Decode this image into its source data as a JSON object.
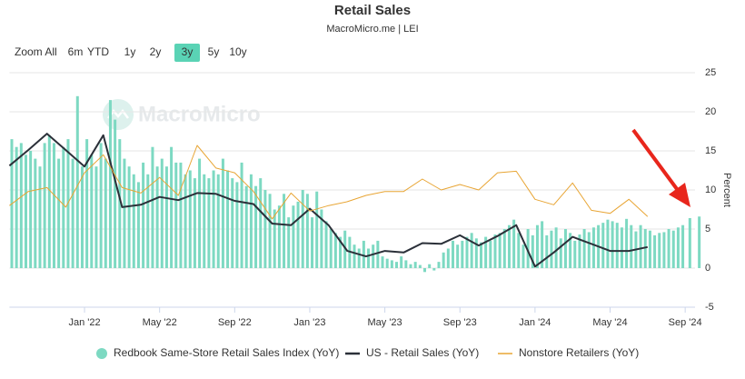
{
  "chart_data": {
    "type": "combo",
    "title": "Retail Sales",
    "subtitle": "MacroMicro.me | LEI",
    "watermark": "MacroMicro",
    "y_axis_title": "Percent",
    "range_selector": {
      "label": "Zoom",
      "buttons": [
        "All",
        "6m",
        "YTD",
        "1y",
        "2y",
        "3y",
        "5y",
        "10y"
      ],
      "selected": 5
    },
    "xlim": [
      "2021-09",
      "2024-10"
    ],
    "xticks": [
      {
        "value": "2022-01",
        "label": "Jan '22"
      },
      {
        "value": "2022-05",
        "label": "May '22"
      },
      {
        "value": "2022-09",
        "label": "Sep '22"
      },
      {
        "value": "2023-01",
        "label": "Jan '23"
      },
      {
        "value": "2023-05",
        "label": "May '23"
      },
      {
        "value": "2023-09",
        "label": "Sep '23"
      },
      {
        "value": "2024-01",
        "label": "Jan '24"
      },
      {
        "value": "2024-05",
        "label": "May '24"
      },
      {
        "value": "2024-09",
        "label": "Sep '24"
      }
    ],
    "ylim": [
      -5,
      25
    ],
    "yticks": [
      -5,
      0,
      5,
      10,
      15,
      20,
      25
    ],
    "grid": true,
    "series": [
      {
        "name": "Redbook Same-Store Retail Sales Index (YoY)",
        "type": "bar",
        "color": "#7dd9c2",
        "x": [
          "2021-09",
          "2021-09",
          "2021-09",
          "2021-09",
          "2021-10",
          "2021-10",
          "2021-10",
          "2021-10",
          "2021-11",
          "2021-11",
          "2021-11",
          "2021-11",
          "2021-12",
          "2021-12",
          "2021-12",
          "2021-12",
          "2022-01",
          "2022-01",
          "2022-01",
          "2022-01",
          "2022-02",
          "2022-02",
          "2022-02",
          "2022-02",
          "2022-03",
          "2022-03",
          "2022-03",
          "2022-03",
          "2022-04",
          "2022-04",
          "2022-04",
          "2022-04",
          "2022-05",
          "2022-05",
          "2022-05",
          "2022-05",
          "2022-06",
          "2022-06",
          "2022-06",
          "2022-06",
          "2022-07",
          "2022-07",
          "2022-07",
          "2022-07",
          "2022-08",
          "2022-08",
          "2022-08",
          "2022-08",
          "2022-09",
          "2022-09",
          "2022-09",
          "2022-09",
          "2022-10",
          "2022-10",
          "2022-10",
          "2022-10",
          "2022-11",
          "2022-11",
          "2022-11",
          "2022-11",
          "2022-12",
          "2022-12",
          "2022-12",
          "2022-12",
          "2023-01",
          "2023-01",
          "2023-01",
          "2023-01",
          "2023-02",
          "2023-02",
          "2023-02",
          "2023-02",
          "2023-03",
          "2023-03",
          "2023-03",
          "2023-03",
          "2023-04",
          "2023-04",
          "2023-04",
          "2023-04",
          "2023-05",
          "2023-05",
          "2023-05",
          "2023-05",
          "2023-06",
          "2023-06",
          "2023-06",
          "2023-06",
          "2023-07",
          "2023-07",
          "2023-07",
          "2023-07",
          "2023-08",
          "2023-08",
          "2023-08",
          "2023-08",
          "2023-09",
          "2023-09",
          "2023-09",
          "2023-09",
          "2023-10",
          "2023-10",
          "2023-10",
          "2023-10",
          "2023-11",
          "2023-11",
          "2023-11",
          "2023-11",
          "2023-12",
          "2023-12",
          "2023-12",
          "2023-12",
          "2024-01",
          "2024-01",
          "2024-01",
          "2024-01",
          "2024-02",
          "2024-02",
          "2024-02",
          "2024-02",
          "2024-03",
          "2024-03",
          "2024-03",
          "2024-03",
          "2024-04",
          "2024-04",
          "2024-04",
          "2024-04",
          "2024-05",
          "2024-05",
          "2024-05",
          "2024-05",
          "2024-06",
          "2024-06",
          "2024-06",
          "2024-06",
          "2024-07",
          "2024-07",
          "2024-07",
          "2024-07",
          "2024-08",
          "2024-08",
          "2024-08",
          "2024-08",
          "2024-09",
          "2024-09"
        ],
        "values": [
          16.5,
          15.5,
          16,
          14.5,
          15,
          14,
          13,
          16,
          17,
          16,
          14,
          15.5,
          16.5,
          14,
          22,
          13,
          16.5,
          14.5,
          13,
          16,
          14,
          21.5,
          19,
          16.5,
          14,
          13,
          12,
          11,
          13.5,
          12,
          15.5,
          13,
          14,
          13,
          15.5,
          13.5,
          13.5,
          12,
          12.5,
          11.5,
          14,
          12,
          11.5,
          12.5,
          12,
          14,
          12.5,
          11.5,
          11,
          13.5,
          10.5,
          12,
          10.5,
          11.5,
          10,
          9.5,
          7.5,
          8,
          9.5,
          6.5,
          8,
          8.5,
          10,
          9.5,
          6.5,
          9.8,
          7.5,
          6,
          5,
          4.5,
          4,
          4.8,
          4,
          3,
          2.5,
          3.5,
          2.5,
          3,
          3.5,
          1.5,
          1.2,
          1,
          0.8,
          1.5,
          1,
          0.5,
          0.8,
          0.4,
          -0.5,
          0.5,
          -0.3,
          0.8,
          2,
          2.5,
          3.5,
          3,
          3.5,
          4,
          4.5,
          3.8,
          3.3,
          4,
          3.5,
          4.3,
          4.5,
          5,
          5.5,
          6.2,
          4.5,
          3,
          5,
          4.2,
          5.5,
          6,
          4.2,
          4.8,
          5.2,
          3.8,
          5,
          4.5,
          3.5,
          4.3,
          5,
          4.6,
          5.2,
          5.5,
          5.8,
          6.2,
          6,
          5.8,
          5.2,
          6.3,
          5.5,
          4.7,
          5.5,
          5,
          4.8,
          4.2,
          4.5,
          4.6,
          5,
          4.8,
          5.2,
          5.5,
          6.4,
          6.6
        ]
      },
      {
        "name": "US - Retail Sales (YoY)",
        "type": "line",
        "color": "#2b3039",
        "width": 2,
        "x": [
          "2021-09",
          "2021-10",
          "2021-11",
          "2021-12",
          "2022-01",
          "2022-02",
          "2022-03",
          "2022-04",
          "2022-05",
          "2022-06",
          "2022-07",
          "2022-08",
          "2022-09",
          "2022-10",
          "2022-11",
          "2022-12",
          "2023-01",
          "2023-02",
          "2023-03",
          "2023-04",
          "2023-05",
          "2023-06",
          "2023-07",
          "2023-08",
          "2023-09",
          "2023-10",
          "2023-11",
          "2023-12",
          "2024-01",
          "2024-02",
          "2024-03",
          "2024-04",
          "2024-05",
          "2024-06",
          "2024-07"
        ],
        "values": [
          13.1,
          15.1,
          17.2,
          15.1,
          13,
          17,
          7.8,
          8.1,
          9.1,
          8.7,
          9.6,
          9.5,
          8.6,
          8.2,
          5.7,
          5.5,
          7.6,
          5.5,
          2.2,
          1.5,
          2.2,
          2,
          3.2,
          3.1,
          4.2,
          2.9,
          4.1,
          5.5,
          0.2,
          2,
          4,
          3.1,
          2.2,
          2.2,
          2.7
        ]
      },
      {
        "name": "Nonstore Retailers (YoY)",
        "type": "line",
        "color": "#e8a534",
        "width": 1,
        "x": [
          "2021-09",
          "2021-10",
          "2021-11",
          "2021-12",
          "2022-01",
          "2022-02",
          "2022-03",
          "2022-04",
          "2022-05",
          "2022-06",
          "2022-07",
          "2022-08",
          "2022-09",
          "2022-10",
          "2022-11",
          "2022-12",
          "2023-01",
          "2023-02",
          "2023-03",
          "2023-04",
          "2023-05",
          "2023-06",
          "2023-07",
          "2023-08",
          "2023-09",
          "2023-10",
          "2023-11",
          "2023-12",
          "2024-01",
          "2024-02",
          "2024-03",
          "2024-04",
          "2024-05",
          "2024-06",
          "2024-07"
        ],
        "values": [
          8,
          9.8,
          10.3,
          7.8,
          12.2,
          14.5,
          10.3,
          9.6,
          11.6,
          9.3,
          15.7,
          12.8,
          12.2,
          9.8,
          6.3,
          9.6,
          7.3,
          8,
          8.5,
          9.3,
          9.8,
          9.8,
          11.4,
          10,
          10.7,
          10,
          12.2,
          12.4,
          8.8,
          8.1,
          10.9,
          7.4,
          7,
          8.8,
          6.6
        ]
      }
    ]
  }
}
